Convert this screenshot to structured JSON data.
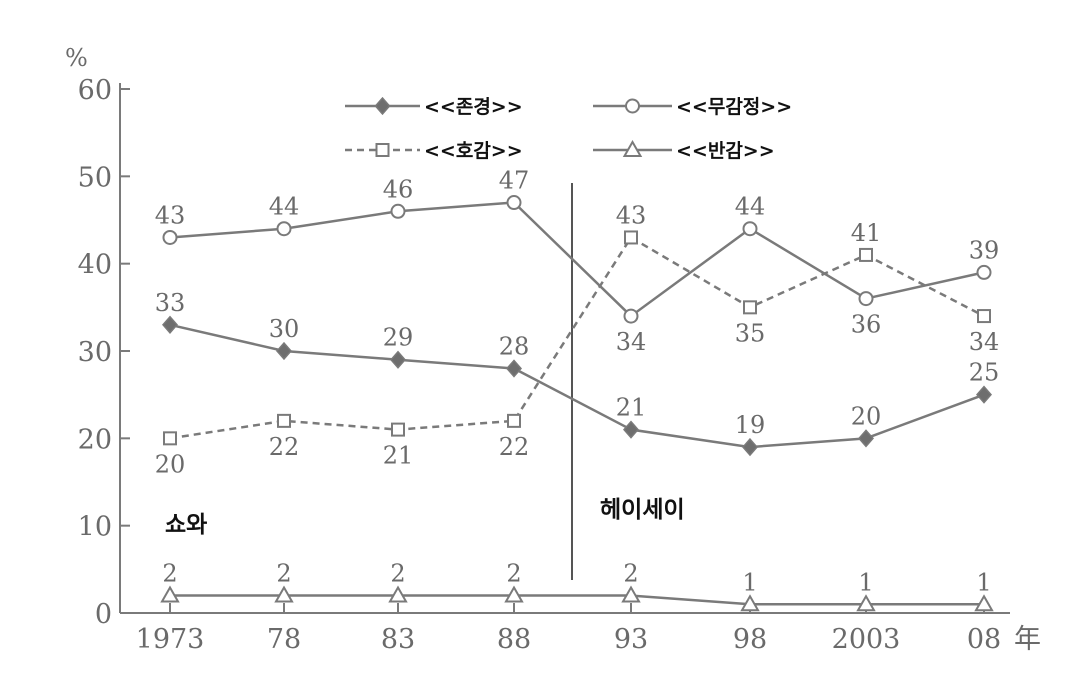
{
  "chart_data": {
    "type": "line",
    "y_unit": "%",
    "x_unit": "年",
    "categories": [
      "1973",
      "78",
      "83",
      "88",
      "93",
      "98",
      "2003",
      "08"
    ],
    "ylim": [
      0,
      60
    ],
    "yticks": [
      0,
      10,
      20,
      30,
      40,
      50,
      60
    ],
    "grid": false,
    "legend_placement": "top",
    "series": [
      {
        "name": "<<존경>>",
        "marker": "diamond-filled",
        "line": "solid",
        "color": "#7a7a7a",
        "values": [
          33,
          30,
          29,
          28,
          21,
          19,
          20,
          25
        ]
      },
      {
        "name": "<<무감정>>",
        "marker": "circle-open",
        "line": "solid",
        "color": "#7a7a7a",
        "values": [
          43,
          44,
          46,
          47,
          34,
          44,
          36,
          39
        ]
      },
      {
        "name": "<<호감>>",
        "marker": "square-open",
        "line": "dashed",
        "color": "#7a7a7a",
        "values": [
          20,
          22,
          21,
          22,
          43,
          35,
          41,
          34
        ]
      },
      {
        "name": "<<반감>>",
        "marker": "triangle-open",
        "line": "solid",
        "color": "#7a7a7a",
        "values": [
          2,
          2,
          2,
          2,
          2,
          1,
          1,
          1
        ]
      }
    ],
    "annotations": {
      "left_era": "쇼와",
      "right_era": "헤이세이"
    }
  }
}
